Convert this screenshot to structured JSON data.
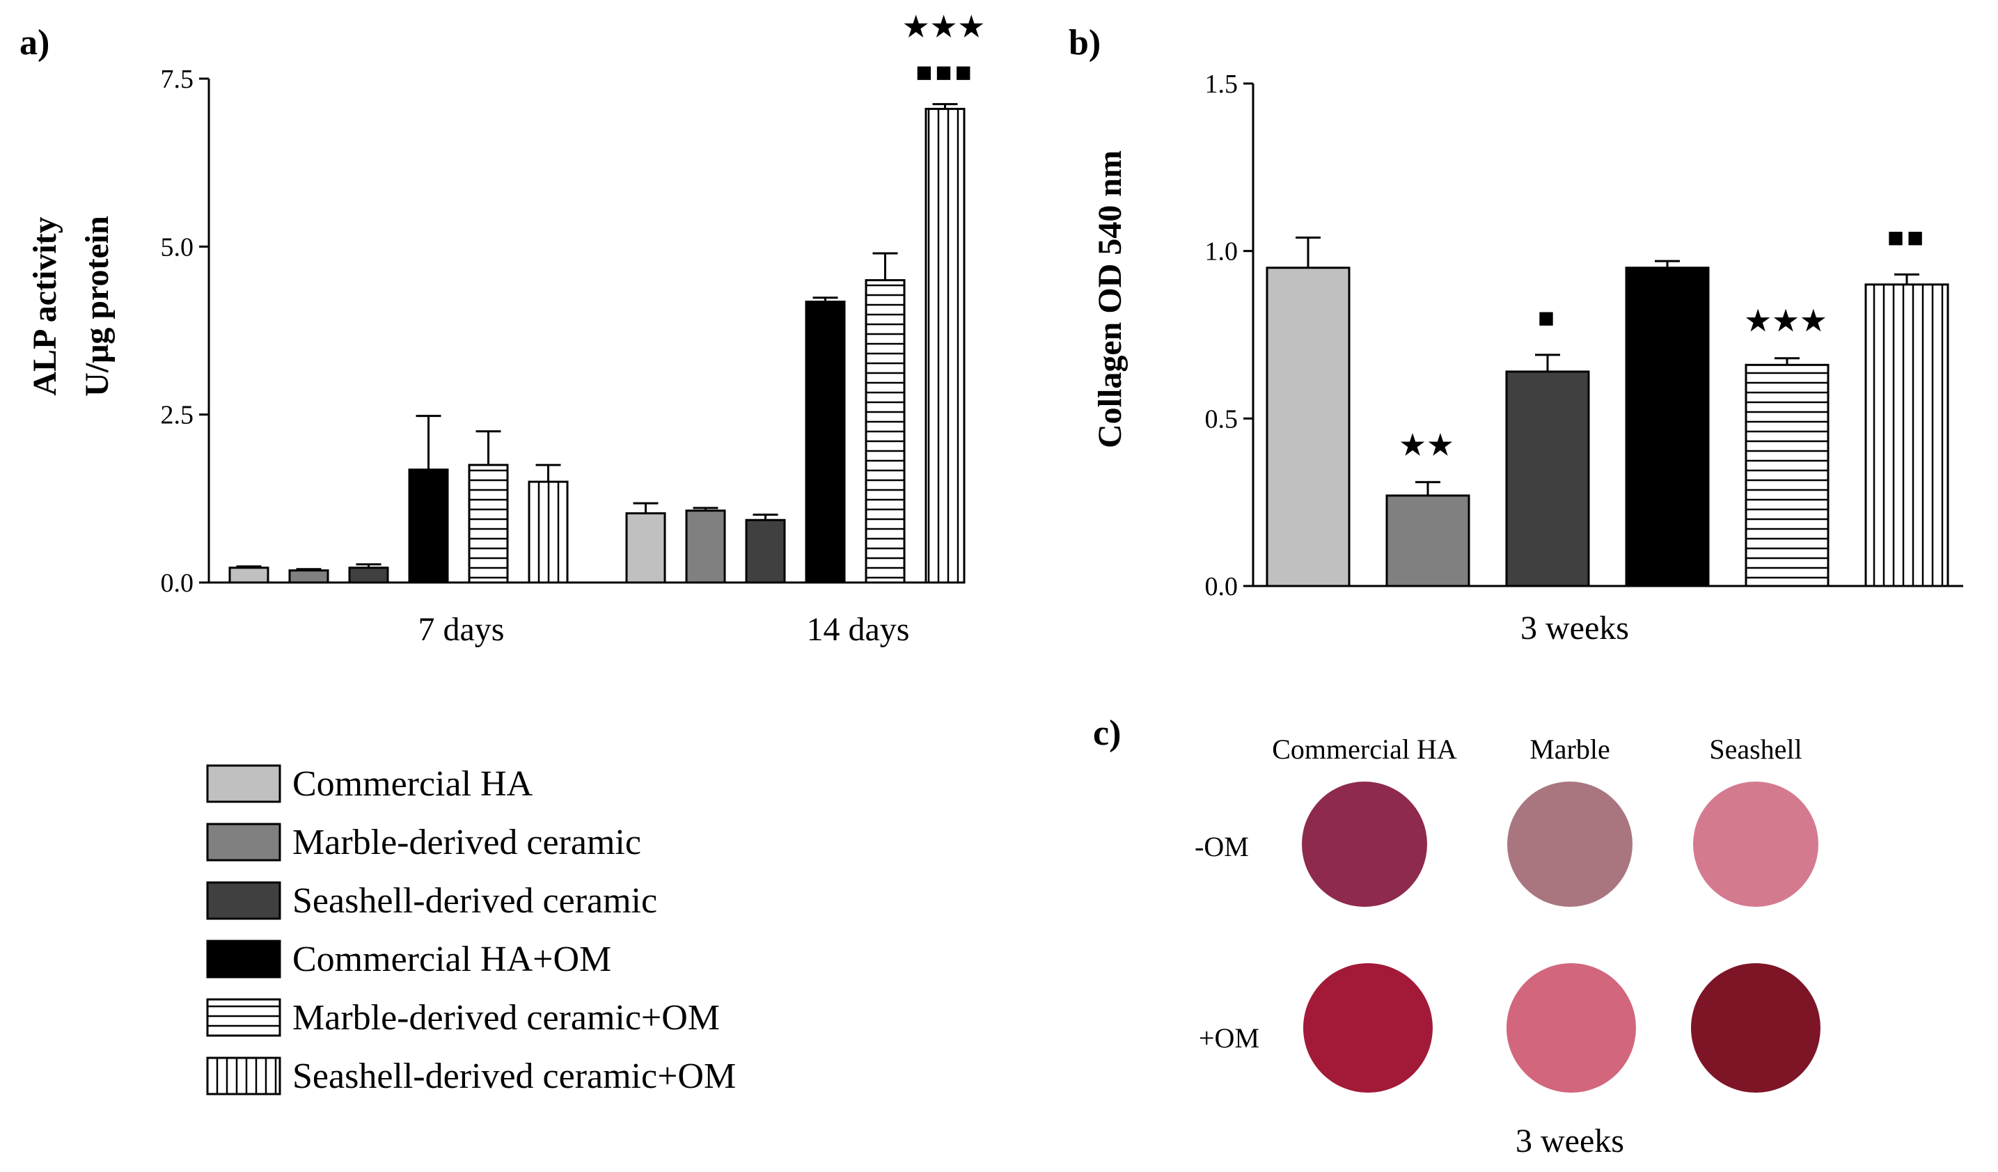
{
  "panels": {
    "a": "a)",
    "b": "b)",
    "c": "c)"
  },
  "legend": [
    {
      "label": "Commercial HA",
      "pattern": "light"
    },
    {
      "label": "Marble-derived ceramic",
      "pattern": "mid"
    },
    {
      "label": "Seashell-derived ceramic",
      "pattern": "dark"
    },
    {
      "label": "Commercial HA+OM",
      "pattern": "black"
    },
    {
      "label": "Marble-derived ceramic+OM",
      "pattern": "hstripe"
    },
    {
      "label": "Seashell-derived ceramic+OM",
      "pattern": "vstripe"
    }
  ],
  "colors": {
    "light": "#c0c0c0",
    "mid": "#808080",
    "dark": "#404040",
    "black": "#000000",
    "stripe_bg": "#ffffff"
  },
  "chart_data": [
    {
      "type": "bar",
      "panel": "a",
      "ylabel_line1": "ALP activity",
      "ylabel_line2": "U/μg protein",
      "ylim": [
        0,
        7.5
      ],
      "yticks": [
        "0.0",
        "2.5",
        "5.0",
        "7.5"
      ],
      "categories": [
        "7 days",
        "14 days"
      ],
      "series": [
        {
          "name": "Commercial HA",
          "values": [
            0.22,
            1.03
          ],
          "errors": [
            0.02,
            0.15
          ]
        },
        {
          "name": "Marble-derived ceramic",
          "values": [
            0.18,
            1.07
          ],
          "errors": [
            0.02,
            0.04
          ]
        },
        {
          "name": "Seashell-derived ceramic",
          "values": [
            0.22,
            0.93
          ],
          "errors": [
            0.05,
            0.08
          ]
        },
        {
          "name": "Commercial HA+OM",
          "values": [
            1.68,
            4.18
          ],
          "errors": [
            0.8,
            0.06
          ]
        },
        {
          "name": "Marble-derived ceramic+OM",
          "values": [
            1.75,
            4.5
          ],
          "errors": [
            0.5,
            0.4
          ]
        },
        {
          "name": "Seashell-derived ceramic+OM",
          "values": [
            1.5,
            7.05
          ],
          "errors": [
            0.25,
            0.07
          ]
        }
      ],
      "annotations": [
        {
          "category": 1,
          "series": 5,
          "lines": [
            "★★★",
            "■■■"
          ]
        }
      ]
    },
    {
      "type": "bar",
      "panel": "b",
      "ylabel": "Collagen OD 540 nm",
      "ylim": [
        0,
        1.5
      ],
      "yticks": [
        "0.0",
        "0.5",
        "1.0",
        "1.5"
      ],
      "xlabel": "3 weeks",
      "series": [
        {
          "name": "Commercial HA",
          "value": 0.95,
          "error": 0.09
        },
        {
          "name": "Marble-derived ceramic",
          "value": 0.27,
          "error": 0.04
        },
        {
          "name": "Seashell-derived ceramic",
          "value": 0.64,
          "error": 0.05
        },
        {
          "name": "Commercial HA+OM",
          "value": 0.95,
          "error": 0.02
        },
        {
          "name": "Marble-derived ceramic+OM",
          "value": 0.66,
          "error": 0.02
        },
        {
          "name": "Seashell-derived ceramic+OM",
          "value": 0.9,
          "error": 0.03
        }
      ],
      "annotations": [
        {
          "series": 1,
          "text": "★★"
        },
        {
          "series": 2,
          "text": "■"
        },
        {
          "series": 4,
          "text": "★★★"
        },
        {
          "series": 5,
          "text": "■■"
        }
      ]
    }
  ],
  "stain": {
    "columns": [
      "Commercial HA",
      "Marble",
      "Seashell"
    ],
    "rows": [
      "-OM",
      "+OM"
    ],
    "colors": [
      [
        "#8e2a4e",
        "#a97680",
        "#d47a8f"
      ],
      [
        "#a21a38",
        "#d2667d",
        "#7e1526"
      ]
    ],
    "caption": "3 weeks"
  }
}
